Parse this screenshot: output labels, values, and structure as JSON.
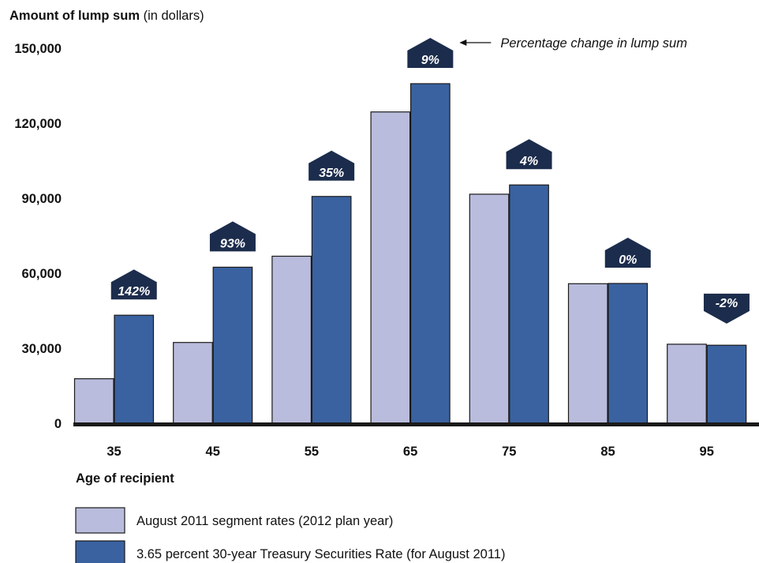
{
  "chart_data": {
    "type": "bar",
    "title_bold": "Amount of lump sum",
    "title_rest": " (in dollars)",
    "xlabel": "Age of recipient",
    "ylabel": "Amount of lump sum (in dollars)",
    "ylim": [
      0,
      150000
    ],
    "yticks": [
      0,
      30000,
      60000,
      90000,
      120000,
      150000
    ],
    "ytick_labels": [
      "0",
      "30,000",
      "60,000",
      "90,000",
      "120,000",
      "150,000"
    ],
    "categories": [
      "35",
      "45",
      "55",
      "65",
      "75",
      "85",
      "95"
    ],
    "series": [
      {
        "name": "August 2011 segment rates (2012 plan year)",
        "color": "#b9bcdc",
        "values": [
          17800,
          32300,
          66800,
          124500,
          91600,
          55800,
          31600
        ]
      },
      {
        "name": "3.65 percent 30-year Treasury Securities Rate (for August 2011)",
        "color": "#3a62a0",
        "values": [
          43200,
          62400,
          90700,
          135800,
          95300,
          55900,
          31200
        ]
      }
    ],
    "percent_change": [
      "142%",
      "93%",
      "35%",
      "9%",
      "4%",
      "0%",
      "-2%"
    ],
    "percent_direction": [
      "up",
      "up",
      "up",
      "up",
      "up",
      "up",
      "down"
    ],
    "annotation": "Percentage change in lump sum",
    "arrow_color": "#1c2c4c",
    "grid": false,
    "legend_position": "bottom-left"
  }
}
